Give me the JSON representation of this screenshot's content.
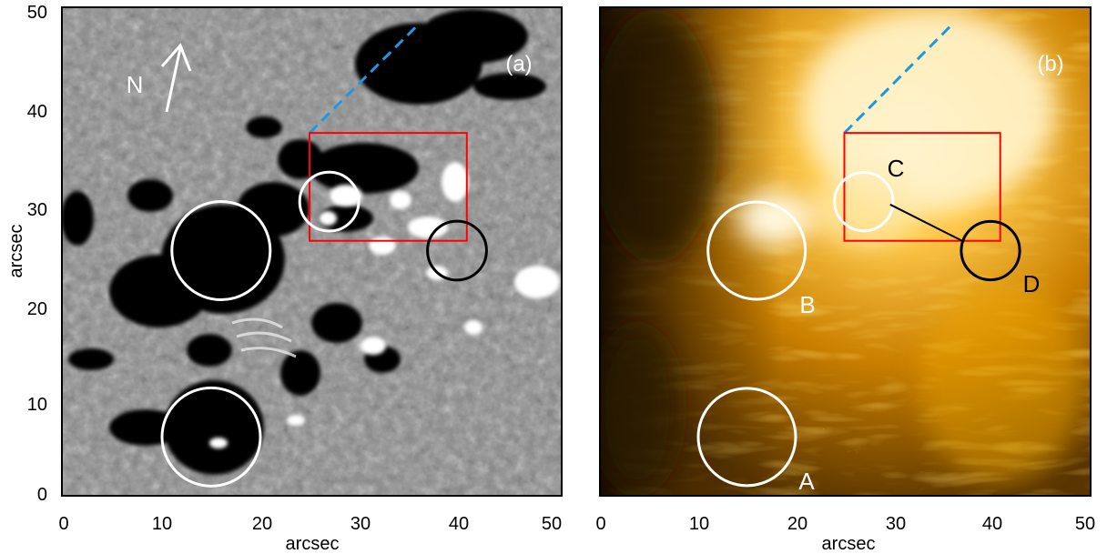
{
  "panels": [
    {
      "id": "a",
      "panel_label": "(a)",
      "image_style": "grayscale magnetogram",
      "ylabel": "arcsec",
      "xlabel": "arcsec",
      "x_ticks": [
        "0",
        "10",
        "20",
        "30",
        "40",
        "50"
      ],
      "y_ticks": [
        "0",
        "10",
        "20",
        "30",
        "40",
        "50"
      ],
      "north_label": "N"
    },
    {
      "id": "b",
      "panel_label": "(b)",
      "image_style": "orange/black EUV image",
      "xlabel": "arcsec",
      "x_ticks": [
        "0",
        "10",
        "20",
        "30",
        "40",
        "50"
      ],
      "region_labels": [
        "A",
        "B",
        "C",
        "D"
      ]
    }
  ],
  "overlays": {
    "circles": [
      {
        "x": 16,
        "y": 25,
        "r": 5,
        "color": "#ffffff",
        "panels": [
          "a",
          "b"
        ]
      },
      {
        "x": 15,
        "y": 6,
        "r": 5,
        "color": "#ffffff",
        "panels": [
          "a",
          "b"
        ]
      },
      {
        "x": 27,
        "y": 30,
        "r": 3,
        "color": "#ffffff",
        "panels": [
          "a",
          "b"
        ]
      },
      {
        "x": 40,
        "y": 25,
        "r": 3,
        "color": "#000000",
        "panels": [
          "a",
          "b"
        ]
      }
    ],
    "box": {
      "x0": 25,
      "x1": 41,
      "y0": 26,
      "y1": 37,
      "color": "#ff0000"
    },
    "dashed_line": {
      "x0": 25,
      "y0": 37,
      "x1": 36,
      "y1": 48,
      "color": "#1a9ae0"
    }
  },
  "colors": {
    "magnetogram_bg": "#8a8a8a",
    "euv_bright": "#ffd36b",
    "euv_dark": "#2a1800",
    "overlay_red": "#ff0000",
    "overlay_blue": "#1a9ae0"
  }
}
